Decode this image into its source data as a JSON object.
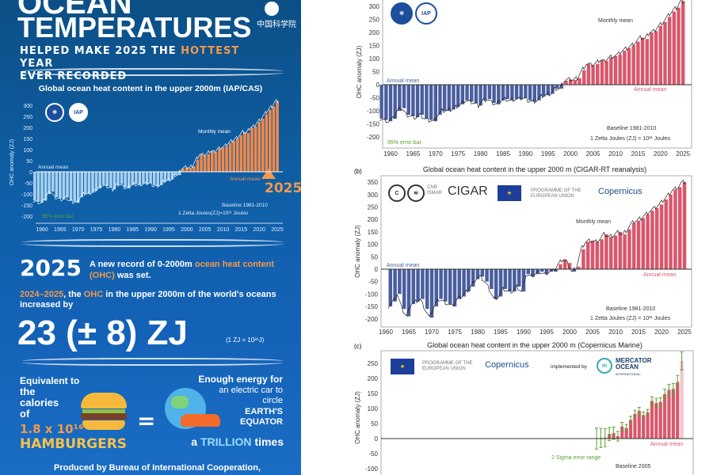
{
  "infographic": {
    "title_line1": "OCEAN",
    "title_line2": "TEMPERATURES",
    "logo_text": "中国科学院",
    "subtitle_a": "HELPED MAKE 2025 THE ",
    "subtitle_hot": "HOTTEST",
    "subtitle_b": " YEAR",
    "subtitle_line2": "EVER RECORDED",
    "record_year": "2025",
    "record_text_a": "A new record of 0-2000m ",
    "record_text_hl": "ocean heat content (OHC)",
    "record_text_b": " was set.",
    "increase_years": "2024–2025",
    "increase_text_a": ", the ",
    "increase_ohc": "OHC",
    "increase_text_b": " in the upper 2000m of the world's oceans increased by",
    "increase_value": "23 (± 8) ZJ",
    "unit_note": "(1 ZJ = 10²¹J)",
    "equiv_text": "Equivalent to",
    "calories_text": "the calories of",
    "hamburger_count": "1.8 x 10¹⁶",
    "hamburgers": "HAMBURGERS",
    "equals": "=",
    "energy_text": "Enough energy for",
    "car_text": "an electric car to circle",
    "equator_text": "EARTH'S EQUATOR",
    "trillion_a": "a ",
    "trillion": "TRILLION",
    "trillion_b": " times",
    "produced_by": "Produced by Bureau of International Cooperation,",
    "highlight_2025": "2025"
  },
  "colors": {
    "negative": "#4a5e9e",
    "positive": "#d9576b",
    "error": "#5aa02c",
    "mini_neg": "#a9d2f0",
    "mini_pos": "#f08a4b"
  },
  "chart_data": [
    {
      "id": "mini",
      "type": "bar",
      "title": "Global ocean heat content in the upper 2000m (IAP/CAS)",
      "ylabel": "OHC anomaly (ZJ)",
      "ylim": [
        -200,
        300
      ],
      "yticks": [
        300,
        250,
        200,
        150,
        100,
        50,
        0,
        -50,
        -100,
        -150,
        -200
      ],
      "xticks": [
        1960,
        1965,
        1970,
        1975,
        1980,
        1985,
        1990,
        1995,
        2000,
        2005,
        2010,
        2015,
        2020,
        2025
      ],
      "annotations": {
        "annual_neg": "Annual mean",
        "annual_pos": "Annual mean",
        "monthly": "Monthly mean",
        "error": "95% error bar",
        "baseline": "Baseline 1981-2010",
        "unit": "1 Zetta Joules(ZJ)=10²¹ Joules"
      },
      "start_year": 1958,
      "values": [
        -130,
        -135,
        -140,
        -130,
        -100,
        -90,
        -115,
        -120,
        -125,
        -115,
        -130,
        -135,
        -140,
        -115,
        -100,
        -100,
        -95,
        -85,
        -75,
        -60,
        -65,
        -70,
        -80,
        -60,
        -55,
        -70,
        -75,
        -60,
        -55,
        -60,
        -55,
        -55,
        -50,
        -60,
        -65,
        -60,
        -45,
        -40,
        -35,
        -15,
        -15,
        15,
        20,
        18,
        25,
        55,
        80,
        75,
        80,
        95,
        90,
        105,
        110,
        115,
        130,
        140,
        150,
        165,
        180,
        175,
        200,
        205,
        225,
        240,
        260,
        280,
        295,
        320
      ]
    },
    {
      "id": "a",
      "type": "bar",
      "title": "",
      "ylabel": "OHC anomaly (ZJ)",
      "ylim": [
        -200,
        300
      ],
      "yticks": [
        300,
        250,
        200,
        150,
        100,
        50,
        0,
        -50,
        -100,
        -150,
        -200
      ],
      "xticks": [
        1960,
        1965,
        1970,
        1975,
        1980,
        1985,
        1990,
        1995,
        2000,
        2005,
        2010,
        2015,
        2020,
        2025
      ],
      "annotations": {
        "annual_neg": "Annual mean",
        "annual_pos": "Annual mean",
        "monthly": "Monthly mean",
        "error": "95% error bar",
        "baseline": "Baseline 1981-2010",
        "unit": "1 Zetta Joules (ZJ) = 10²¹ Joules"
      },
      "start_year": 1958,
      "values": [
        -130,
        -135,
        -140,
        -130,
        -100,
        -90,
        -115,
        -120,
        -125,
        -115,
        -130,
        -135,
        -140,
        -115,
        -100,
        -100,
        -95,
        -85,
        -75,
        -60,
        -65,
        -70,
        -80,
        -60,
        -55,
        -70,
        -75,
        -60,
        -55,
        -60,
        -55,
        -55,
        -50,
        -60,
        -65,
        -60,
        -45,
        -40,
        -35,
        -15,
        -15,
        15,
        20,
        18,
        25,
        55,
        80,
        75,
        80,
        95,
        90,
        105,
        110,
        115,
        130,
        140,
        150,
        165,
        180,
        175,
        200,
        205,
        225,
        240,
        260,
        280,
        295,
        320
      ]
    },
    {
      "id": "b",
      "panel": "(b)",
      "type": "bar",
      "title": "Global ocean heat content in the upper 2000 m (CIGAR-RT reanalysis)",
      "ylabel": "OHC anomaly (ZJ)",
      "ylim": [
        -200,
        350
      ],
      "yticks": [
        350,
        300,
        250,
        200,
        150,
        100,
        50,
        0,
        -50,
        -100,
        -150,
        -200
      ],
      "xticks": [
        1960,
        1965,
        1970,
        1975,
        1980,
        1985,
        1990,
        1995,
        2000,
        2005,
        2010,
        2015,
        2020,
        2025
      ],
      "annotations": {
        "annual_neg": "Annual mean",
        "annual_pos": "Annual mean",
        "monthly": "Monthly mean",
        "baseline": "Baseline 1981-2010",
        "unit": "1 Zetta Joules (ZJ) = 10²¹ Joules"
      },
      "logos": {
        "cnr": "CNR ISMAR",
        "cigar": "CIGAR",
        "programme": "PROGRAMME OF THE EUROPEAN UNION",
        "copernicus": "Copernicus"
      },
      "start_year": 1961,
      "values": [
        -150,
        -130,
        -100,
        -160,
        -190,
        -140,
        -130,
        -120,
        -160,
        -195,
        -150,
        -120,
        -130,
        -140,
        -150,
        -120,
        -110,
        -90,
        -70,
        -40,
        -30,
        -50,
        -80,
        -120,
        -110,
        -80,
        -90,
        -90,
        -70,
        -90,
        -20,
        -30,
        -20,
        -10,
        -20,
        -10,
        -10,
        20,
        40,
        25,
        -10,
        10,
        80,
        110,
        115,
        110,
        120,
        140,
        130,
        135,
        150,
        140,
        160,
        185,
        195,
        205,
        220,
        235,
        245,
        260,
        280,
        300,
        320,
        330,
        350
      ]
    },
    {
      "id": "c",
      "panel": "(c)",
      "type": "bar",
      "title": "Global ocean heat content in the upper 2000 m (Copernicus Marine)",
      "ylabel": "OHC anomaly (ZJ)",
      "ylim": [
        -100,
        250
      ],
      "yticks": [
        250,
        200,
        150,
        100,
        50,
        0,
        -50,
        -100
      ],
      "annotations": {
        "annual_pos": "Annual mean",
        "error": "2 Sigma error range",
        "baseline": "Baseline 2005"
      },
      "logos": {
        "programme": "PROGRAMME OF THE EUROPEAN UNION",
        "copernicus": "Copernicus",
        "implemented": "implemented by",
        "mercator": "MERCATOR OCEAN",
        "mercator_sub": "INTERNATIONAL"
      },
      "start_year": 2004,
      "values": [
        0,
        2,
        3,
        15,
        18,
        8,
        40,
        35,
        62,
        82,
        92,
        78,
        87,
        125,
        118,
        122,
        148,
        162,
        165,
        188,
        258
      ],
      "errors": [
        35,
        32,
        30,
        22,
        20,
        16,
        14,
        12,
        12,
        12,
        12,
        10,
        10,
        14,
        16,
        14,
        16,
        18,
        18,
        22,
        30
      ]
    }
  ]
}
